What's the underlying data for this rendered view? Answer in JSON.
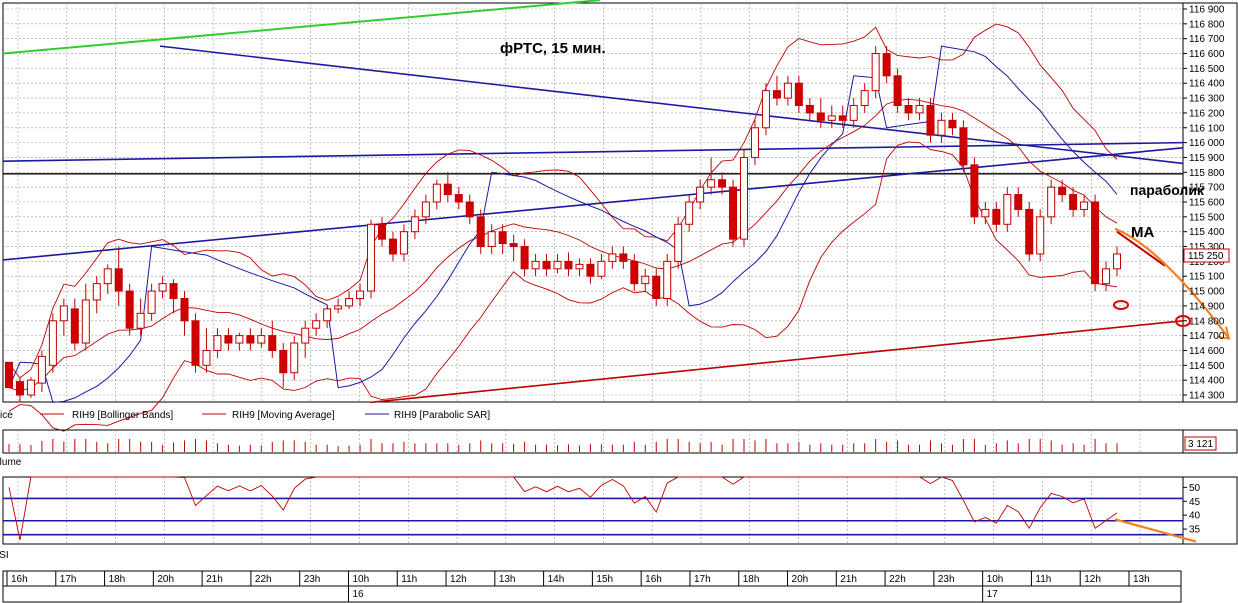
{
  "chart_data": {
    "type": "candlestick",
    "title": "фРТС,   15 мин.",
    "annotations": {
      "sar_label": "параболик",
      "ma_label": "MA"
    },
    "price_panel": {
      "ylim": [
        114250,
        116950
      ],
      "y_ticks": [
        114300,
        114400,
        114500,
        114600,
        114700,
        114800,
        114900,
        115000,
        115100,
        115200,
        115300,
        115400,
        115500,
        115600,
        115700,
        115800,
        115900,
        116000,
        116100,
        116200,
        116300,
        116400,
        116500,
        116600,
        116700,
        116800,
        116900
      ],
      "y_tick_labels": [
        "114 300",
        "114 400",
        "114 500",
        "114 600",
        "114 700",
        "114 800",
        "114 900",
        "115 000",
        "115 100",
        "115 200",
        "115 300",
        "115 400",
        "115 500",
        "115 600",
        "115 700",
        "115 800",
        "115 900",
        "116 000",
        "116 100",
        "116 200",
        "116 300",
        "116 400",
        "116 500",
        "116 600",
        "116 700",
        "116 800",
        "116 900"
      ],
      "last_price_label": "115 250",
      "last_price": 115250,
      "level_marker_label": "114 800",
      "level_marker": 114800,
      "legend": [
        "Price",
        "RIH9 [Bollinger Bands]",
        "RIH9 [Moving Average]",
        "RIH9 [Parabolic SAR]"
      ],
      "candles": [
        [
          114520,
          114350,
          114520,
          114350
        ],
        [
          114390,
          114300,
          114420,
          114250
        ],
        [
          114300,
          114400,
          114420,
          114280
        ],
        [
          114380,
          114560,
          114600,
          114320
        ],
        [
          114500,
          114800,
          114850,
          114450
        ],
        [
          114800,
          114900,
          114950,
          114700
        ],
        [
          114880,
          114650,
          114950,
          114600
        ],
        [
          114650,
          114940,
          115050,
          114600
        ],
        [
          114940,
          115050,
          115100,
          114850
        ],
        [
          115050,
          115150,
          115180,
          114980
        ],
        [
          115150,
          115000,
          115300,
          114900
        ],
        [
          115000,
          114750,
          115050,
          114700
        ],
        [
          114750,
          114850,
          114950,
          114700
        ],
        [
          114850,
          115000,
          115050,
          114800
        ],
        [
          115000,
          115050,
          115100,
          114950
        ],
        [
          115050,
          114950,
          115080,
          114850
        ],
        [
          114950,
          114800,
          115000,
          114700
        ],
        [
          114800,
          114500,
          114850,
          114450
        ],
        [
          114500,
          114600,
          114750,
          114450
        ],
        [
          114600,
          114700,
          114750,
          114550
        ],
        [
          114700,
          114650,
          114750,
          114600
        ],
        [
          114650,
          114700,
          114720,
          114600
        ],
        [
          114700,
          114650,
          114750,
          114600
        ],
        [
          114650,
          114700,
          114750,
          114620
        ],
        [
          114700,
          114600,
          114800,
          114550
        ],
        [
          114600,
          114450,
          114650,
          114350
        ],
        [
          114450,
          114650,
          114700,
          114400
        ],
        [
          114650,
          114750,
          114800,
          114550
        ],
        [
          114750,
          114800,
          114850,
          114700
        ],
        [
          114800,
          114880,
          114900,
          114750
        ],
        [
          114880,
          114900,
          114950,
          114850
        ],
        [
          114900,
          114950,
          115000,
          114880
        ],
        [
          114950,
          115000,
          115050,
          114900
        ],
        [
          115000,
          115450,
          115480,
          114950
        ],
        [
          115450,
          115350,
          115500,
          115300
        ],
        [
          115350,
          115250,
          115400,
          115200
        ],
        [
          115250,
          115400,
          115450,
          115200
        ],
        [
          115400,
          115500,
          115550,
          115350
        ],
        [
          115500,
          115600,
          115650,
          115450
        ],
        [
          115600,
          115720,
          115750,
          115550
        ],
        [
          115720,
          115650,
          115800,
          115600
        ],
        [
          115650,
          115600,
          115700,
          115550
        ],
        [
          115600,
          115500,
          115650,
          115450
        ],
        [
          115500,
          115300,
          115550,
          115250
        ],
        [
          115300,
          115400,
          115450,
          115250
        ],
        [
          115400,
          115320,
          115450,
          115250
        ],
        [
          115320,
          115300,
          115380,
          115200
        ],
        [
          115300,
          115150,
          115350,
          115100
        ],
        [
          115150,
          115200,
          115250,
          115100
        ],
        [
          115200,
          115150,
          115250,
          115100
        ],
        [
          115150,
          115200,
          115250,
          115120
        ],
        [
          115200,
          115150,
          115260,
          115100
        ],
        [
          115150,
          115180,
          115220,
          115100
        ],
        [
          115180,
          115100,
          115220,
          115050
        ],
        [
          115100,
          115200,
          115250,
          115080
        ],
        [
          115200,
          115250,
          115300,
          115150
        ],
        [
          115250,
          115200,
          115300,
          115150
        ],
        [
          115200,
          115050,
          115250,
          115000
        ],
        [
          115050,
          115100,
          115150,
          115000
        ],
        [
          115100,
          114950,
          115150,
          114900
        ],
        [
          114950,
          115200,
          115250,
          114900
        ],
        [
          115200,
          115450,
          115500,
          115150
        ],
        [
          115450,
          115600,
          115650,
          115400
        ],
        [
          115600,
          115700,
          115750,
          115550
        ],
        [
          115700,
          115750,
          115900,
          115650
        ],
        [
          115750,
          115700,
          115800,
          115650
        ],
        [
          115700,
          115350,
          115750,
          115300
        ],
        [
          115350,
          115900,
          115950,
          115300
        ],
        [
          115900,
          116100,
          116150,
          115850
        ],
        [
          116100,
          116350,
          116400,
          116050
        ],
        [
          116350,
          116300,
          116450,
          116250
        ],
        [
          116300,
          116400,
          116450,
          116250
        ],
        [
          116400,
          116250,
          116450,
          116200
        ],
        [
          116250,
          116200,
          116300,
          116150
        ],
        [
          116200,
          116150,
          116300,
          116100
        ],
        [
          116150,
          116180,
          116250,
          116100
        ],
        [
          116180,
          116150,
          116250,
          116100
        ],
        [
          116150,
          116250,
          116300,
          116100
        ],
        [
          116250,
          116350,
          116400,
          116200
        ],
        [
          116350,
          116600,
          116650,
          116300
        ],
        [
          116600,
          116450,
          116650,
          116400
        ],
        [
          116450,
          116250,
          116500,
          116200
        ],
        [
          116250,
          116200,
          116300,
          116150
        ],
        [
          116200,
          116250,
          116300,
          116150
        ],
        [
          116250,
          116050,
          116300,
          116000
        ],
        [
          116050,
          116150,
          116200,
          116000
        ],
        [
          116150,
          116100,
          116200,
          116050
        ],
        [
          116100,
          115850,
          116150,
          115800
        ],
        [
          115850,
          115500,
          115900,
          115450
        ],
        [
          115500,
          115550,
          115600,
          115450
        ],
        [
          115550,
          115450,
          115600,
          115400
        ],
        [
          115450,
          115650,
          115700,
          115400
        ],
        [
          115650,
          115550,
          115700,
          115500
        ],
        [
          115550,
          115250,
          115600,
          115200
        ],
        [
          115250,
          115500,
          115550,
          115200
        ],
        [
          115500,
          115700,
          115750,
          115450
        ],
        [
          115700,
          115650,
          115750,
          115600
        ],
        [
          115650,
          115550,
          115700,
          115500
        ],
        [
          115550,
          115600,
          115650,
          115500
        ],
        [
          115600,
          115050,
          115650,
          115000
        ],
        [
          115050,
          115150,
          115200,
          115000
        ],
        [
          115150,
          115250,
          115300,
          115100
        ]
      ]
    },
    "volume_panel": {
      "label": "Volume",
      "last_value_label": "3 121"
    },
    "rsi_panel": {
      "label": "RSI",
      "ylim": [
        30,
        53
      ],
      "y_ticks": [
        35,
        40,
        45,
        50
      ],
      "levels": [
        33,
        38,
        46
      ]
    },
    "time_axis": {
      "hour_labels": [
        "16h",
        "17h",
        "18h",
        "20h",
        "21h",
        "22h",
        "23h",
        "10h",
        "11h",
        "12h",
        "13h",
        "14h",
        "15h",
        "16h",
        "17h",
        "18h",
        "20h",
        "21h",
        "22h",
        "23h",
        "10h",
        "11h",
        "12h",
        "13h"
      ],
      "day_labels": [
        "16",
        "17"
      ]
    }
  }
}
